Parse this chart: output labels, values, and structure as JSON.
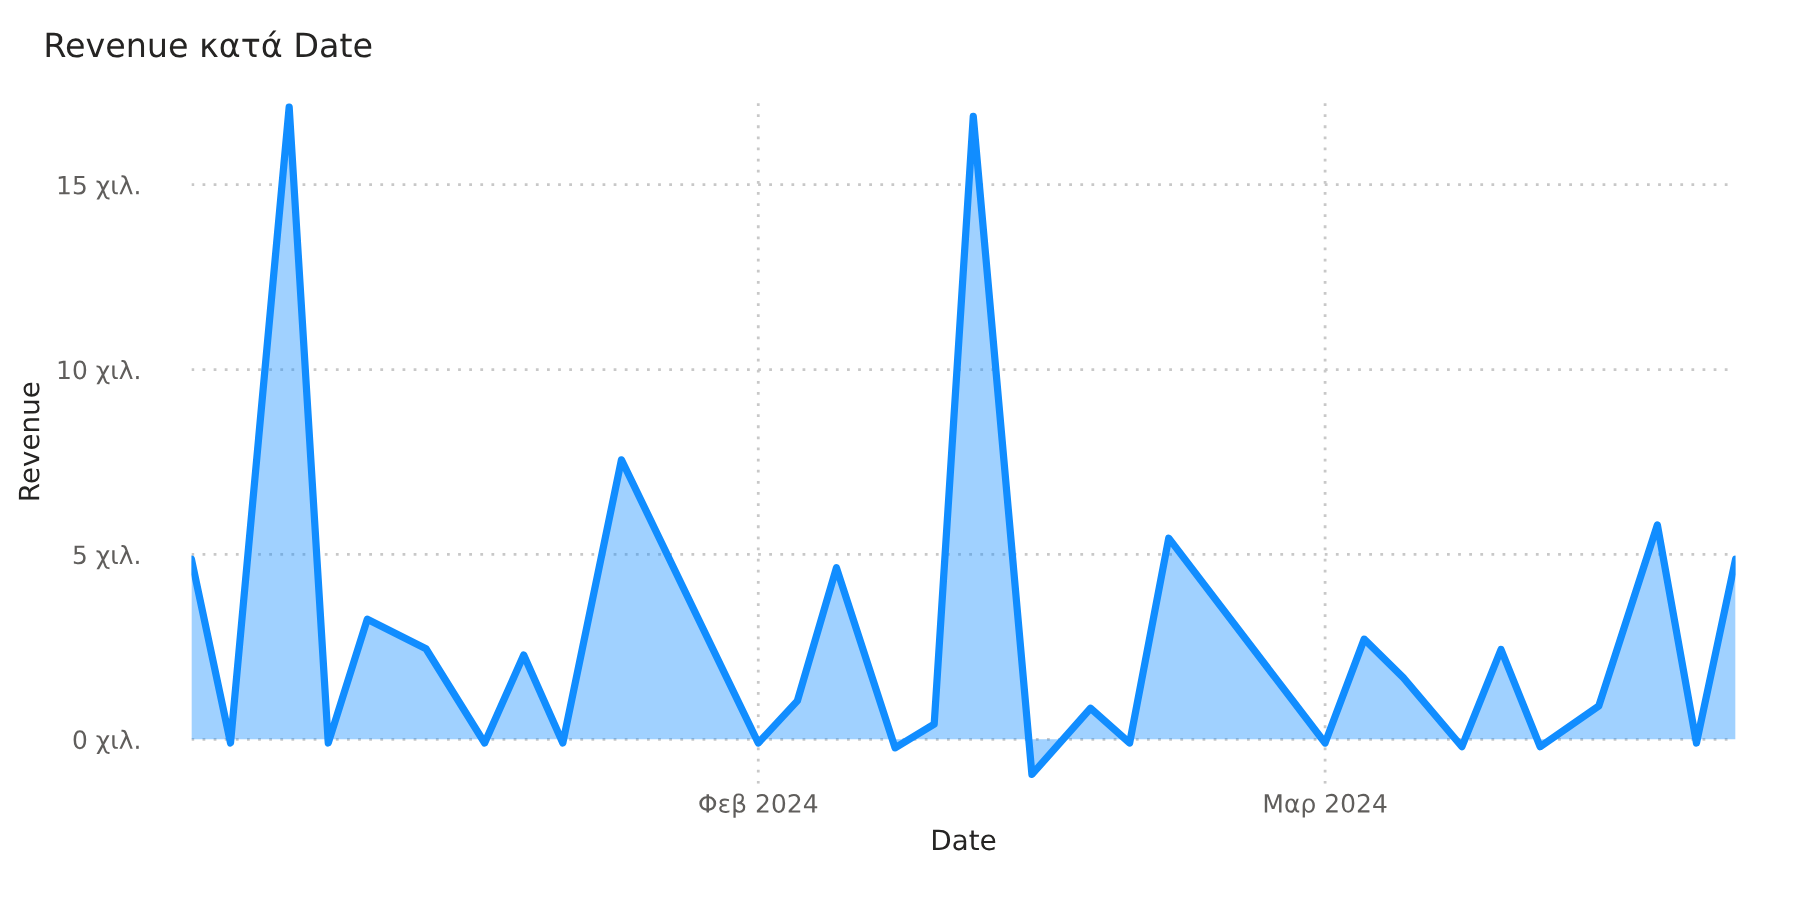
{
  "chart_data": {
    "type": "area",
    "title": "Revenue κατά Date",
    "xlabel": "Date",
    "ylabel": "Revenue",
    "x": [
      "2024-01-03",
      "2024-01-05",
      "2024-01-08",
      "2024-01-10",
      "2024-01-12",
      "2024-01-15",
      "2024-01-18",
      "2024-01-20",
      "2024-01-22",
      "2024-01-25",
      "2024-02-01",
      "2024-02-03",
      "2024-02-05",
      "2024-02-08",
      "2024-02-10",
      "2024-02-12",
      "2024-02-15",
      "2024-02-18",
      "2024-02-20",
      "2024-02-22",
      "2024-03-01",
      "2024-03-03",
      "2024-03-05",
      "2024-03-08",
      "2024-03-10",
      "2024-03-12",
      "2024-03-15",
      "2024-03-18",
      "2024-03-20",
      "2024-03-22"
    ],
    "series": [
      {
        "color": "#118dff",
        "values": [
          4.87,
          -0.1,
          17.1,
          -0.1,
          3.25,
          2.45,
          -0.1,
          2.28,
          -0.1,
          7.56,
          -0.1,
          1.04,
          4.64,
          -0.23,
          0.41,
          16.85,
          -0.95,
          0.84,
          -0.1,
          5.44,
          -0.1,
          2.71,
          1.67,
          -0.2,
          2.43,
          -0.2,
          0.9,
          5.8,
          -0.1,
          4.87
        ]
      }
    ],
    "xlim": [
      "2024-01-03",
      "2024-03-22"
    ],
    "xticks": [
      {
        "value": "2024-02-01",
        "label": "Φεβ 2024"
      },
      {
        "value": "2024-03-01",
        "label": "Μαρ 2024"
      }
    ],
    "ylim": [
      -1.2,
      17.3
    ],
    "yticks": [
      {
        "value": 0,
        "label": "0 χιλ."
      },
      {
        "value": 5,
        "label": "5 χιλ."
      },
      {
        "value": 10,
        "label": "10 χιλ."
      },
      {
        "value": 15,
        "label": "15 χιλ."
      }
    ],
    "grid": true,
    "legend": false
  }
}
